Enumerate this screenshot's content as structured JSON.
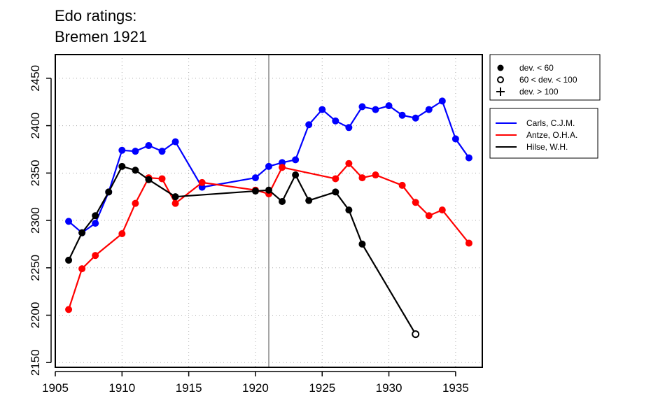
{
  "title_lines": [
    "Edo ratings:",
    "Bremen 1921"
  ],
  "chart_data": {
    "type": "line",
    "title": "Edo ratings: Bremen 1921",
    "xlim": [
      1905,
      1937
    ],
    "ylim": [
      2145,
      2475
    ],
    "x_ticks": [
      1905,
      1910,
      1915,
      1920,
      1925,
      1930,
      1935
    ],
    "y_ticks": [
      2150,
      2200,
      2250,
      2300,
      2350,
      2400,
      2450
    ],
    "grid": "dotted",
    "vline_x": 1921,
    "legend_position": "right",
    "marker_legend": [
      {
        "marker": "filled-circle",
        "label": "dev. < 60"
      },
      {
        "marker": "open-circle",
        "label": "60 < dev. < 100"
      },
      {
        "marker": "plus",
        "label": "dev. > 100"
      }
    ],
    "series": [
      {
        "name": "Carls, C.J.M.",
        "color": "#0000ff",
        "points": [
          [
            1906,
            2299,
            "filled"
          ],
          [
            1907,
            2287,
            "filled"
          ],
          [
            1908,
            2297,
            "filled"
          ],
          [
            1909,
            2330,
            "filled"
          ],
          [
            1910,
            2374,
            "filled"
          ],
          [
            1911,
            2373,
            "filled"
          ],
          [
            1912,
            2379,
            "filled"
          ],
          [
            1913,
            2373,
            "filled"
          ],
          [
            1914,
            2383,
            "filled"
          ],
          [
            1916,
            2335,
            "filled"
          ],
          [
            1920,
            2345,
            "filled"
          ],
          [
            1921,
            2357,
            "filled"
          ],
          [
            1922,
            2361,
            "filled"
          ],
          [
            1923,
            2364,
            "filled"
          ],
          [
            1924,
            2401,
            "filled"
          ],
          [
            1925,
            2417,
            "filled"
          ],
          [
            1926,
            2405,
            "filled"
          ],
          [
            1927,
            2398,
            "filled"
          ],
          [
            1928,
            2420,
            "filled"
          ],
          [
            1929,
            2417,
            "filled"
          ],
          [
            1930,
            2421,
            "filled"
          ],
          [
            1931,
            2411,
            "filled"
          ],
          [
            1932,
            2408,
            "filled"
          ],
          [
            1933,
            2417,
            "filled"
          ],
          [
            1934,
            2426,
            "filled"
          ],
          [
            1935,
            2386,
            "filled"
          ],
          [
            1936,
            2366,
            "filled"
          ]
        ]
      },
      {
        "name": "Antze, O.H.A.",
        "color": "#ff0000",
        "points": [
          [
            1906,
            2206,
            "filled"
          ],
          [
            1907,
            2249,
            "filled"
          ],
          [
            1908,
            2263,
            "filled"
          ],
          [
            1910,
            2286,
            "filled"
          ],
          [
            1911,
            2318,
            "filled"
          ],
          [
            1912,
            2345,
            "filled"
          ],
          [
            1913,
            2344,
            "filled"
          ],
          [
            1914,
            2318,
            "filled"
          ],
          [
            1916,
            2340,
            "filled"
          ],
          [
            1920,
            2332,
            "filled"
          ],
          [
            1921,
            2328,
            "filled"
          ],
          [
            1922,
            2356,
            "filled"
          ],
          [
            1926,
            2344,
            "filled"
          ],
          [
            1927,
            2360,
            "filled"
          ],
          [
            1928,
            2345,
            "filled"
          ],
          [
            1929,
            2348,
            "filled"
          ],
          [
            1931,
            2337,
            "filled"
          ],
          [
            1932,
            2319,
            "filled"
          ],
          [
            1933,
            2305,
            "filled"
          ],
          [
            1934,
            2311,
            "filled"
          ],
          [
            1936,
            2276,
            "filled"
          ]
        ]
      },
      {
        "name": "Hilse, W.H.",
        "color": "#000000",
        "points": [
          [
            1906,
            2258,
            "filled"
          ],
          [
            1907,
            2287,
            "filled"
          ],
          [
            1908,
            2305,
            "filled"
          ],
          [
            1909,
            2330,
            "filled"
          ],
          [
            1910,
            2357,
            "filled"
          ],
          [
            1911,
            2353,
            "filled"
          ],
          [
            1912,
            2343,
            "filled"
          ],
          [
            1914,
            2325,
            "filled"
          ],
          [
            1920,
            2331,
            "filled"
          ],
          [
            1921,
            2332,
            "filled"
          ],
          [
            1922,
            2320,
            "filled"
          ],
          [
            1923,
            2348,
            "filled"
          ],
          [
            1924,
            2321,
            "filled"
          ],
          [
            1926,
            2330,
            "filled"
          ],
          [
            1927,
            2311,
            "filled"
          ],
          [
            1928,
            2275,
            "filled"
          ],
          [
            1932,
            2180,
            "open"
          ]
        ]
      }
    ]
  }
}
